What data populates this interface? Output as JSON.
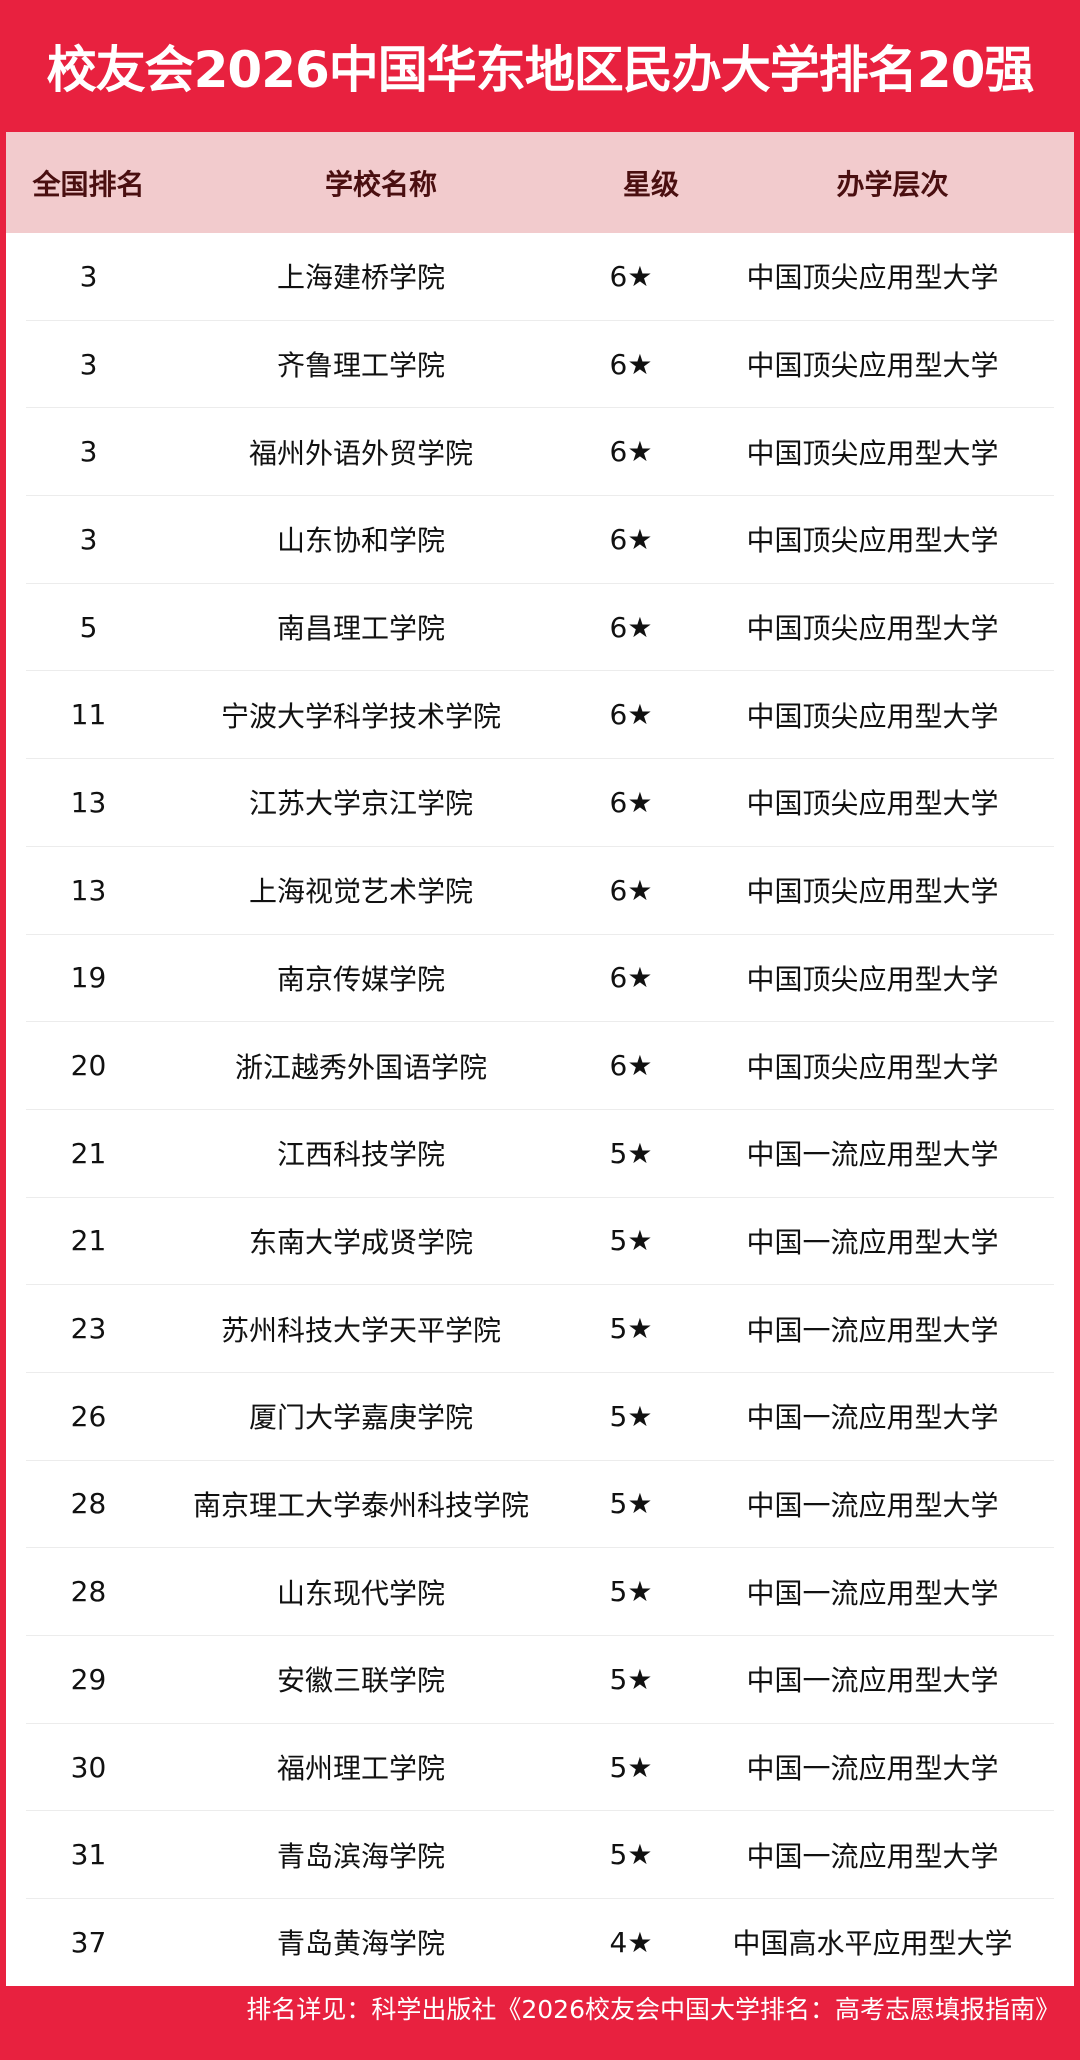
{
  "title": "校友会2026中国华东地区民办大学排名20强",
  "headers": [
    "全国排名",
    "学校名称",
    "星级",
    "办学层次"
  ],
  "rows": [
    [
      "3",
      "上海建桥学院",
      "6★",
      "中国顶尖应用型大学"
    ],
    [
      "3",
      "齐鲁理工学院",
      "6★",
      "中国顶尖应用型大学"
    ],
    [
      "3",
      "福州外语外贸学院",
      "6★",
      "中国顶尖应用型大学"
    ],
    [
      "3",
      "山东协和学院",
      "6★",
      "中国顶尖应用型大学"
    ],
    [
      "5",
      "南昌理工学院",
      "6★",
      "中国顶尖应用型大学"
    ],
    [
      "11",
      "宁波大学科学技术学院",
      "6★",
      "中国顶尖应用型大学"
    ],
    [
      "13",
      "江苏大学京江学院",
      "6★",
      "中国顶尖应用型大学"
    ],
    [
      "13",
      "上海视觉艺术学院",
      "6★",
      "中国顶尖应用型大学"
    ],
    [
      "19",
      "南京传媒学院",
      "6★",
      "中国顶尖应用型大学"
    ],
    [
      "20",
      "浙江越秀外国语学院",
      "6★",
      "中国顶尖应用型大学"
    ],
    [
      "21",
      "江西科技学院",
      "5★",
      "中国一流应用型大学"
    ],
    [
      "21",
      "东南大学成贤学院",
      "5★",
      "中国一流应用型大学"
    ],
    [
      "23",
      "苏州科技大学天平学院",
      "5★",
      "中国一流应用型大学"
    ],
    [
      "26",
      "厦门大学嘉庚学院",
      "5★",
      "中国一流应用型大学"
    ],
    [
      "28",
      "南京理工大学泰州科技学院",
      "5★",
      "中国一流应用型大学"
    ],
    [
      "28",
      "山东现代学院",
      "5★",
      "中国一流应用型大学"
    ],
    [
      "29",
      "安徽三联学院",
      "5★",
      "中国一流应用型大学"
    ],
    [
      "30",
      "福州理工学院",
      "5★",
      "中国一流应用型大学"
    ],
    [
      "31",
      "青岛滨海学院",
      "5★",
      "中国一流应用型大学"
    ],
    [
      "37",
      "青岛黄海学院",
      "4★",
      "中国高水平应用型大学"
    ]
  ],
  "footer": "排名详见：科学出版社《2026校友会中国大学排名：高考志愿填报指南》",
  "colors": {
    "brand_red": "#e8213f",
    "header_bg": "#f2cbcd",
    "header_text": "#4a0f10"
  }
}
